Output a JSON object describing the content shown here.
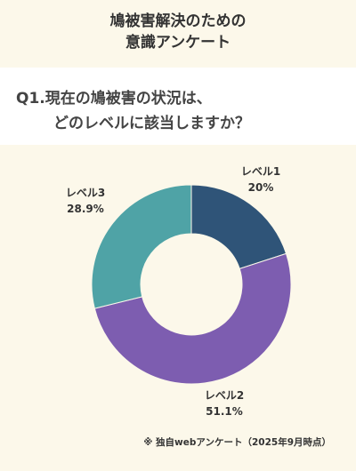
{
  "title": {
    "line1": "鳩被害解決のための",
    "line2": "意識アンケート"
  },
  "question": {
    "line1": "Q1.現在の鳩被害の状況は、",
    "line2": "どのレベルに該当しますか？"
  },
  "chart_data": {
    "type": "pie",
    "donut": true,
    "categories": [
      "レベル1",
      "レベル2",
      "レベル3"
    ],
    "values": [
      20,
      51.1,
      28.9
    ],
    "value_labels": [
      "20%",
      "51.1%",
      "28.9%"
    ],
    "colors": [
      "#2f5478",
      "#7d5db0",
      "#4fa3a6"
    ]
  },
  "footer": {
    "note": "※ 独自webアンケート（2025年9月時点）"
  }
}
